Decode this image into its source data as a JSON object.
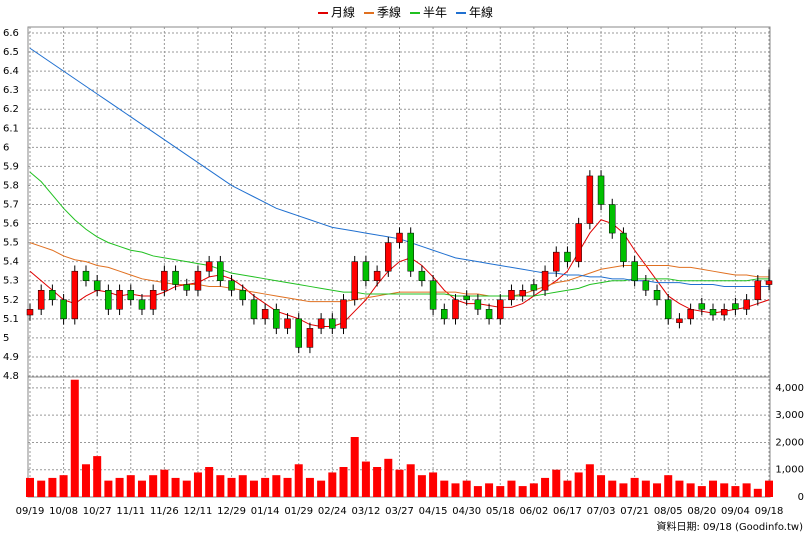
{
  "chart_data": {
    "type": "candlestick",
    "footer": "資料日期: 09/18 (Goodinfo.tw)",
    "categories": [
      "09/19",
      null,
      null,
      "10/08",
      null,
      null,
      "10/27",
      null,
      null,
      "11/11",
      null,
      null,
      "11/26",
      null,
      null,
      "12/11",
      null,
      null,
      "12/29",
      null,
      null,
      "01/14",
      null,
      null,
      "01/29",
      null,
      null,
      "02/24",
      null,
      null,
      "03/12",
      null,
      null,
      "03/27",
      null,
      null,
      "04/15",
      null,
      null,
      "04/30",
      null,
      null,
      "05/18",
      null,
      null,
      "06/02",
      null,
      null,
      "06/17",
      null,
      null,
      "07/03",
      null,
      null,
      "07/21",
      null,
      null,
      "08/05",
      null,
      null,
      "08/20",
      null,
      null,
      "09/04",
      null,
      null,
      "09/18"
    ],
    "open": [
      5.12,
      5.15,
      5.25,
      5.2,
      5.1,
      5.35,
      5.3,
      5.25,
      5.15,
      5.25,
      5.2,
      5.15,
      5.25,
      5.35,
      5.28,
      5.25,
      5.35,
      5.4,
      5.3,
      5.25,
      5.2,
      5.1,
      5.15,
      5.05,
      5.1,
      4.95,
      5.05,
      5.1,
      5.05,
      5.2,
      5.4,
      5.3,
      5.35,
      5.5,
      5.55,
      5.35,
      5.3,
      5.15,
      5.1,
      5.22,
      5.2,
      5.15,
      5.1,
      5.2,
      5.22,
      5.28,
      5.25,
      5.35,
      5.45,
      5.4,
      5.6,
      5.85,
      5.7,
      5.55,
      5.4,
      5.3,
      5.25,
      5.2,
      5.08,
      5.1,
      5.18,
      5.15,
      5.12,
      5.18,
      5.15,
      5.2,
      5.28
    ],
    "high": [
      5.18,
      5.28,
      5.28,
      5.23,
      5.38,
      5.38,
      5.33,
      5.28,
      5.28,
      5.28,
      5.23,
      5.28,
      5.38,
      5.38,
      5.31,
      5.38,
      5.43,
      5.43,
      5.33,
      5.28,
      5.23,
      5.18,
      5.18,
      5.13,
      5.13,
      5.08,
      5.13,
      5.13,
      5.23,
      5.43,
      5.43,
      5.38,
      5.53,
      5.58,
      5.58,
      5.38,
      5.33,
      5.18,
      5.23,
      5.25,
      5.23,
      5.18,
      5.23,
      5.28,
      5.28,
      5.31,
      5.38,
      5.48,
      5.48,
      5.63,
      5.88,
      5.88,
      5.73,
      5.58,
      5.43,
      5.33,
      5.28,
      5.23,
      5.13,
      5.18,
      5.21,
      5.18,
      5.18,
      5.21,
      5.23,
      5.33,
      5.36
    ],
    "low": [
      5.09,
      5.12,
      5.17,
      5.07,
      5.07,
      5.27,
      5.22,
      5.12,
      5.12,
      5.17,
      5.12,
      5.12,
      5.22,
      5.25,
      5.22,
      5.22,
      5.32,
      5.27,
      5.22,
      5.17,
      5.07,
      5.07,
      5.02,
      5.02,
      4.92,
      4.92,
      5.02,
      5.02,
      5.02,
      5.17,
      5.27,
      5.27,
      5.32,
      5.47,
      5.32,
      5.27,
      5.12,
      5.07,
      5.07,
      5.17,
      5.12,
      5.07,
      5.07,
      5.17,
      5.19,
      5.22,
      5.22,
      5.32,
      5.37,
      5.37,
      5.57,
      5.67,
      5.52,
      5.37,
      5.27,
      5.22,
      5.17,
      5.07,
      5.05,
      5.07,
      5.12,
      5.09,
      5.09,
      5.12,
      5.12,
      5.17,
      5.25
    ],
    "close": [
      5.15,
      5.25,
      5.2,
      5.1,
      5.35,
      5.3,
      5.25,
      5.15,
      5.25,
      5.2,
      5.15,
      5.25,
      5.35,
      5.28,
      5.25,
      5.35,
      5.4,
      5.3,
      5.25,
      5.2,
      5.1,
      5.15,
      5.05,
      5.1,
      4.95,
      5.05,
      5.1,
      5.05,
      5.2,
      5.4,
      5.3,
      5.35,
      5.5,
      5.55,
      5.35,
      5.3,
      5.15,
      5.1,
      5.2,
      5.2,
      5.15,
      5.1,
      5.2,
      5.25,
      5.25,
      5.25,
      5.35,
      5.45,
      5.4,
      5.6,
      5.85,
      5.7,
      5.55,
      5.4,
      5.3,
      5.25,
      5.2,
      5.1,
      5.1,
      5.15,
      5.15,
      5.12,
      5.15,
      5.15,
      5.2,
      5.3,
      5.3
    ],
    "up_color": "#ff0000",
    "down_color": "#00c000",
    "volume": {
      "color": "#ff0000",
      "axis": "y2",
      "values": [
        700,
        600,
        700,
        800,
        4300,
        1200,
        1500,
        600,
        700,
        800,
        600,
        800,
        1000,
        700,
        600,
        900,
        1100,
        800,
        700,
        800,
        600,
        700,
        800,
        700,
        1200,
        700,
        600,
        900,
        1100,
        2200,
        1300,
        1100,
        1400,
        1000,
        1200,
        800,
        900,
        600,
        500,
        600,
        400,
        500,
        400,
        600,
        400,
        500,
        700,
        1000,
        600,
        900,
        1200,
        800,
        600,
        500,
        700,
        600,
        500,
        800,
        600,
        500,
        400,
        600,
        500,
        400,
        500,
        300,
        600
      ]
    },
    "series": [
      {
        "name": "月線",
        "color": "#e00000",
        "values": [
          5.35,
          5.3,
          5.25,
          5.2,
          5.18,
          5.22,
          5.25,
          5.24,
          5.22,
          5.23,
          5.22,
          5.22,
          5.24,
          5.27,
          5.28,
          5.29,
          5.32,
          5.33,
          5.31,
          5.27,
          5.22,
          5.18,
          5.14,
          5.12,
          5.1,
          5.07,
          5.06,
          5.06,
          5.08,
          5.14,
          5.2,
          5.28,
          5.35,
          5.4,
          5.42,
          5.38,
          5.32,
          5.25,
          5.2,
          5.18,
          5.18,
          5.17,
          5.16,
          5.16,
          5.18,
          5.22,
          5.26,
          5.3,
          5.35,
          5.45,
          5.55,
          5.62,
          5.6,
          5.55,
          5.46,
          5.38,
          5.3,
          5.22,
          5.18,
          5.15,
          5.14,
          5.13,
          5.14,
          5.15,
          5.16,
          5.18,
          5.2
        ]
      },
      {
        "name": "季線",
        "color": "#e07020",
        "values": [
          5.5,
          5.48,
          5.46,
          5.43,
          5.41,
          5.4,
          5.38,
          5.37,
          5.35,
          5.33,
          5.31,
          5.3,
          5.29,
          5.28,
          5.28,
          5.28,
          5.27,
          5.27,
          5.26,
          5.25,
          5.24,
          5.23,
          5.22,
          5.21,
          5.2,
          5.19,
          5.19,
          5.19,
          5.19,
          5.2,
          5.21,
          5.22,
          5.23,
          5.24,
          5.24,
          5.24,
          5.24,
          5.24,
          5.24,
          5.23,
          5.23,
          5.22,
          5.22,
          5.22,
          5.23,
          5.25,
          5.27,
          5.29,
          5.3,
          5.32,
          5.34,
          5.36,
          5.37,
          5.38,
          5.38,
          5.38,
          5.38,
          5.38,
          5.37,
          5.37,
          5.36,
          5.35,
          5.34,
          5.33,
          5.33,
          5.32,
          5.32
        ]
      },
      {
        "name": "半年",
        "color": "#20c020",
        "values": [
          5.87,
          5.82,
          5.75,
          5.68,
          5.62,
          5.57,
          5.53,
          5.5,
          5.48,
          5.46,
          5.45,
          5.43,
          5.42,
          5.41,
          5.4,
          5.39,
          5.38,
          5.36,
          5.34,
          5.33,
          5.32,
          5.31,
          5.3,
          5.29,
          5.28,
          5.27,
          5.26,
          5.25,
          5.24,
          5.24,
          5.23,
          5.23,
          5.23,
          5.23,
          5.23,
          5.23,
          5.23,
          5.23,
          5.22,
          5.22,
          5.22,
          5.22,
          5.22,
          5.22,
          5.22,
          5.22,
          5.23,
          5.24,
          5.25,
          5.26,
          5.28,
          5.29,
          5.3,
          5.3,
          5.31,
          5.31,
          5.31,
          5.31,
          5.3,
          5.3,
          5.3,
          5.3,
          5.3,
          5.3,
          5.3,
          5.31,
          5.31
        ]
      },
      {
        "name": "年線",
        "color": "#2070d0",
        "values": [
          6.52,
          6.48,
          6.44,
          6.4,
          6.36,
          6.32,
          6.28,
          6.24,
          6.2,
          6.16,
          6.12,
          6.08,
          6.04,
          6.0,
          5.96,
          5.92,
          5.88,
          5.84,
          5.8,
          5.77,
          5.74,
          5.71,
          5.68,
          5.66,
          5.64,
          5.62,
          5.6,
          5.58,
          5.57,
          5.56,
          5.55,
          5.54,
          5.53,
          5.52,
          5.5,
          5.48,
          5.46,
          5.44,
          5.42,
          5.41,
          5.4,
          5.39,
          5.38,
          5.37,
          5.36,
          5.35,
          5.34,
          5.34,
          5.33,
          5.33,
          5.32,
          5.32,
          5.31,
          5.31,
          5.3,
          5.3,
          5.29,
          5.29,
          5.29,
          5.28,
          5.28,
          5.28,
          5.27,
          5.27,
          5.27,
          5.27,
          5.27
        ]
      }
    ],
    "ylim": [
      4.8,
      6.6
    ],
    "yticks": [
      4.8,
      4.9,
      5,
      5.1,
      5.2,
      5.3,
      5.4,
      5.5,
      5.6,
      5.7,
      5.8,
      5.9,
      6,
      6.1,
      6.2,
      6.3,
      6.4,
      6.5,
      6.6
    ],
    "y2lim": [
      0,
      4400
    ],
    "y2ticks": [
      0,
      {
        "value": 1000,
        "label": "1,000"
      },
      {
        "value": 2000,
        "label": "2,000"
      },
      {
        "value": 3000,
        "label": "3,000"
      },
      {
        "value": 4000,
        "label": "4,000"
      }
    ],
    "grid": true
  }
}
